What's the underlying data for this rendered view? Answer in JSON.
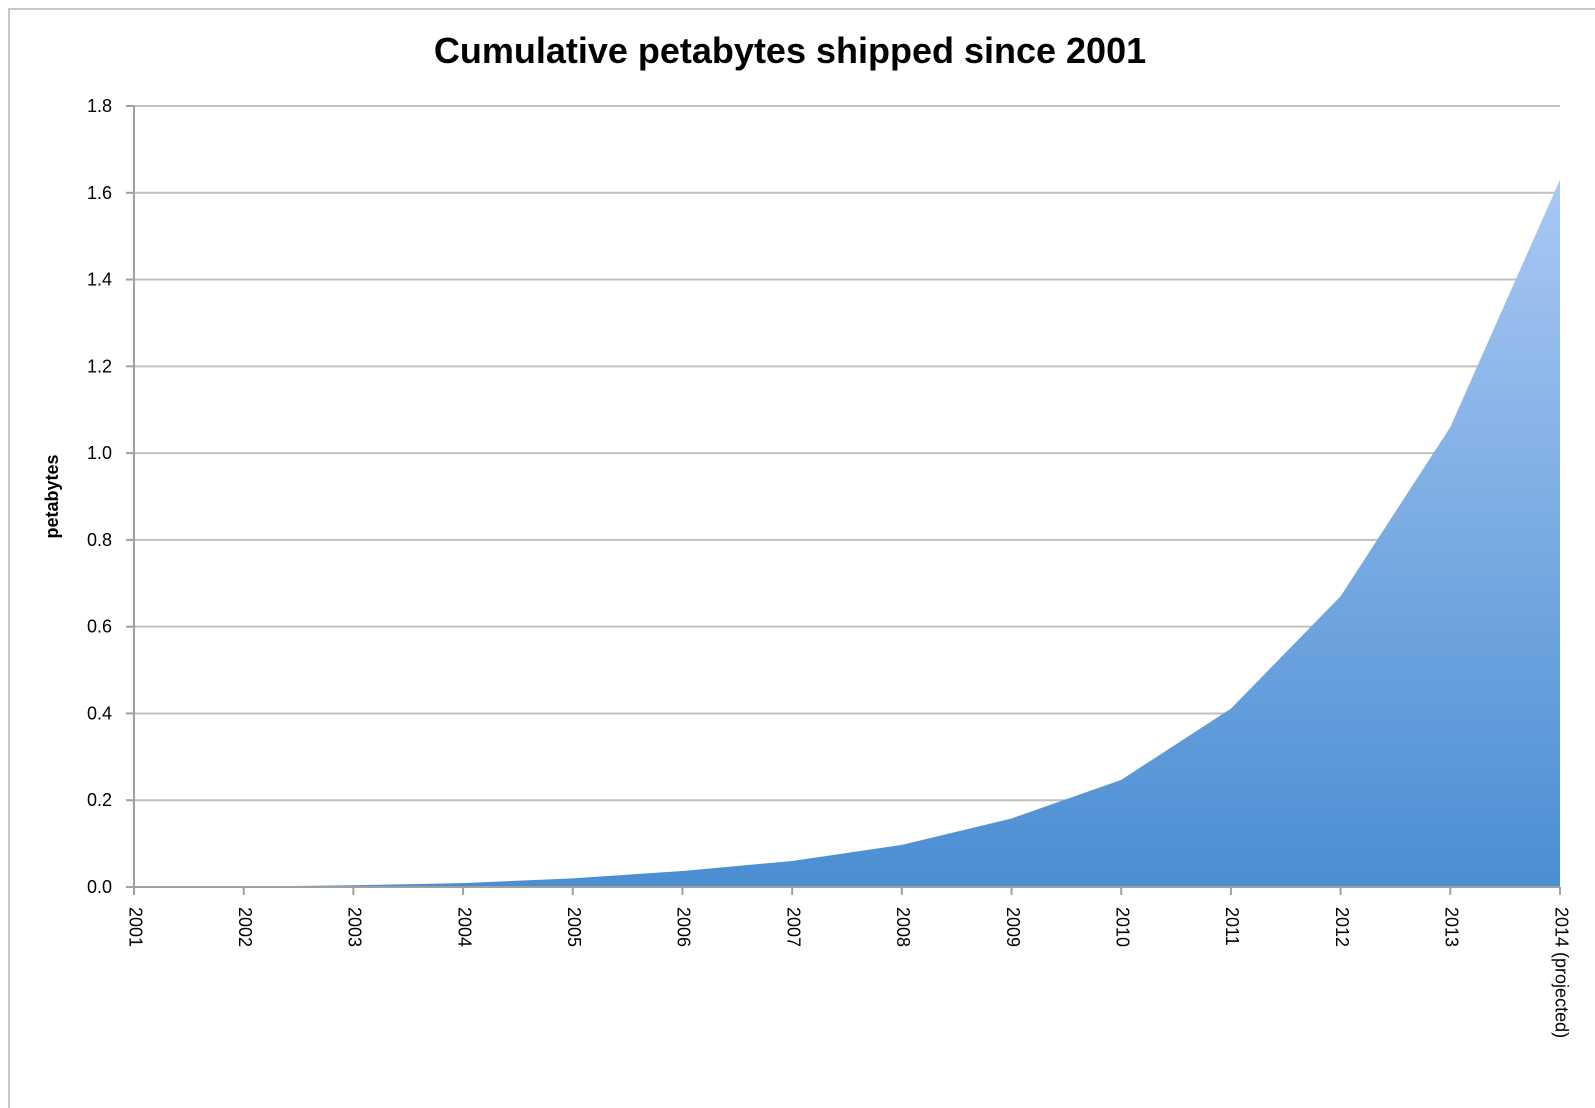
{
  "chart_data": {
    "type": "area",
    "title": "Cumulative petabytes  shipped since 2001",
    "ylabel": "petabytes",
    "xlabel": "",
    "categories": [
      "2001",
      "2002",
      "2003",
      "2004",
      "2005",
      "2006",
      "2007",
      "2008",
      "2009",
      "2010",
      "2011",
      "2012",
      "2013",
      "2014 (projected)"
    ],
    "series": [
      {
        "values": [
          0.0,
          0.001,
          0.004,
          0.009,
          0.02,
          0.037,
          0.06,
          0.097,
          0.158,
          0.247,
          0.411,
          0.67,
          1.06,
          1.63
        ]
      }
    ],
    "ylim": [
      0,
      1.8
    ],
    "yticks": [
      "0.0",
      "0.2",
      "0.4",
      "0.6",
      "0.8",
      "1.0",
      "1.2",
      "1.4",
      "1.6",
      "1.8"
    ],
    "grid": true,
    "legend": "none",
    "colors": {
      "fill_top": "#a9c8f4",
      "fill_bottom": "#4a8ed2",
      "grid": "#c0c0c0",
      "axis": "#a0a0a0"
    }
  }
}
